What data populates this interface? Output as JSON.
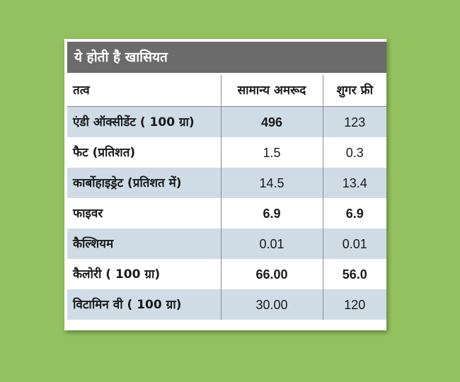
{
  "table_title": "ये होती है खासियत",
  "columns": [
    "तत्व",
    "सामान्य अमरूद",
    "शुगर फ्री"
  ],
  "rows": [
    {
      "label": "एंडी ऑक्सीडेंट ( 100 ग्रा)",
      "normal": "496",
      "sugar_free": "123"
    },
    {
      "label": "फैट (प्रतिशत)",
      "normal": "1.5",
      "sugar_free": "0.3"
    },
    {
      "label": "कार्बोहाइड्रेट (प्रतिशत में)",
      "normal": "14.5",
      "sugar_free": "13.4"
    },
    {
      "label": "फाइवर",
      "normal": "6.9",
      "sugar_free": "6.9"
    },
    {
      "label": "कैल्शियम",
      "normal": "0.01",
      "sugar_free": "0.01"
    },
    {
      "label": "कैलोरी ( 100 ग्रा)",
      "normal": "66.00",
      "sugar_free": "56.0"
    },
    {
      "label": "विटामिन वी ( 100 ग्रा)",
      "normal": "30.00",
      "sugar_free": "120"
    }
  ],
  "colors": {
    "background": "#93c15f",
    "title_bar": "#6b6b6b",
    "shaded_row": "#cfdce6",
    "card": "#ffffff"
  }
}
